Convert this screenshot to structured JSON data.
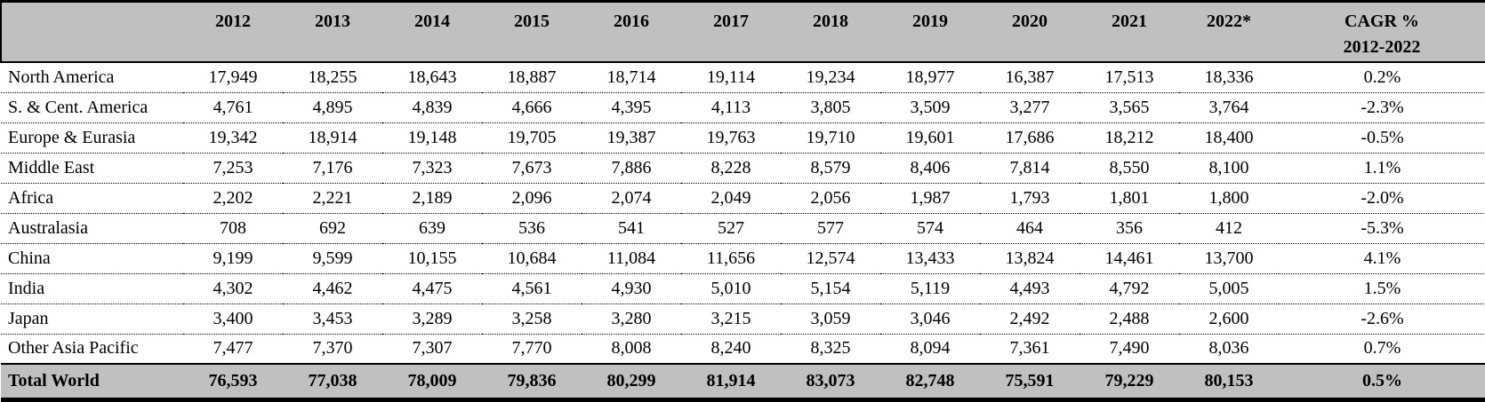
{
  "colors": {
    "header_bg": "#c0c0c0",
    "total_row_bg": "#c0c0c0",
    "border": "#000000",
    "text": "#000000"
  },
  "chart_data": {
    "type": "table",
    "columns": [
      "",
      "2012",
      "2013",
      "2014",
      "2015",
      "2016",
      "2017",
      "2018",
      "2019",
      "2020",
      "2021",
      "2022*",
      "CAGR % 2012-2022"
    ],
    "cagr_header": {
      "line1": "CAGR %",
      "line2": "2012-2022"
    },
    "rows": [
      {
        "label": "North America",
        "values": [
          "17,949",
          "18,255",
          "18,643",
          "18,887",
          "18,714",
          "19,114",
          "19,234",
          "18,977",
          "16,387",
          "17,513",
          "18,336"
        ],
        "cagr": "0.2%"
      },
      {
        "label": "S. & Cent. America",
        "values": [
          "4,761",
          "4,895",
          "4,839",
          "4,666",
          "4,395",
          "4,113",
          "3,805",
          "3,509",
          "3,277",
          "3,565",
          "3,764"
        ],
        "cagr": "-2.3%"
      },
      {
        "label": "Europe & Eurasia",
        "values": [
          "19,342",
          "18,914",
          "19,148",
          "19,705",
          "19,387",
          "19,763",
          "19,710",
          "19,601",
          "17,686",
          "18,212",
          "18,400"
        ],
        "cagr": "-0.5%"
      },
      {
        "label": "Middle East",
        "values": [
          "7,253",
          "7,176",
          "7,323",
          "7,673",
          "7,886",
          "8,228",
          "8,579",
          "8,406",
          "7,814",
          "8,550",
          "8,100"
        ],
        "cagr": "1.1%"
      },
      {
        "label": "Africa",
        "values": [
          "2,202",
          "2,221",
          "2,189",
          "2,096",
          "2,074",
          "2,049",
          "2,056",
          "1,987",
          "1,793",
          "1,801",
          "1,800"
        ],
        "cagr": "-2.0%"
      },
      {
        "label": "Australasia",
        "values": [
          "708",
          "692",
          "639",
          "536",
          "541",
          "527",
          "577",
          "574",
          "464",
          "356",
          "412"
        ],
        "cagr": "-5.3%"
      },
      {
        "label": "China",
        "values": [
          "9,199",
          "9,599",
          "10,155",
          "10,684",
          "11,084",
          "11,656",
          "12,574",
          "13,433",
          "13,824",
          "14,461",
          "13,700"
        ],
        "cagr": "4.1%"
      },
      {
        "label": "India",
        "values": [
          "4,302",
          "4,462",
          "4,475",
          "4,561",
          "4,930",
          "5,010",
          "5,154",
          "5,119",
          "4,493",
          "4,792",
          "5,005"
        ],
        "cagr": "1.5%"
      },
      {
        "label": "Japan",
        "values": [
          "3,400",
          "3,453",
          "3,289",
          "3,258",
          "3,280",
          "3,215",
          "3,059",
          "3,046",
          "2,492",
          "2,488",
          "2,600"
        ],
        "cagr": "-2.6%"
      },
      {
        "label": "Other Asia Pacific",
        "values": [
          "7,477",
          "7,370",
          "7,307",
          "7,770",
          "8,008",
          "8,240",
          "8,325",
          "8,094",
          "7,361",
          "7,490",
          "8,036"
        ],
        "cagr": "0.7%"
      }
    ],
    "total": {
      "label": "Total World",
      "values": [
        "76,593",
        "77,038",
        "78,009",
        "79,836",
        "80,299",
        "81,914",
        "83,073",
        "82,748",
        "75,591",
        "79,229",
        "80,153"
      ],
      "cagr": "0.5%"
    }
  }
}
